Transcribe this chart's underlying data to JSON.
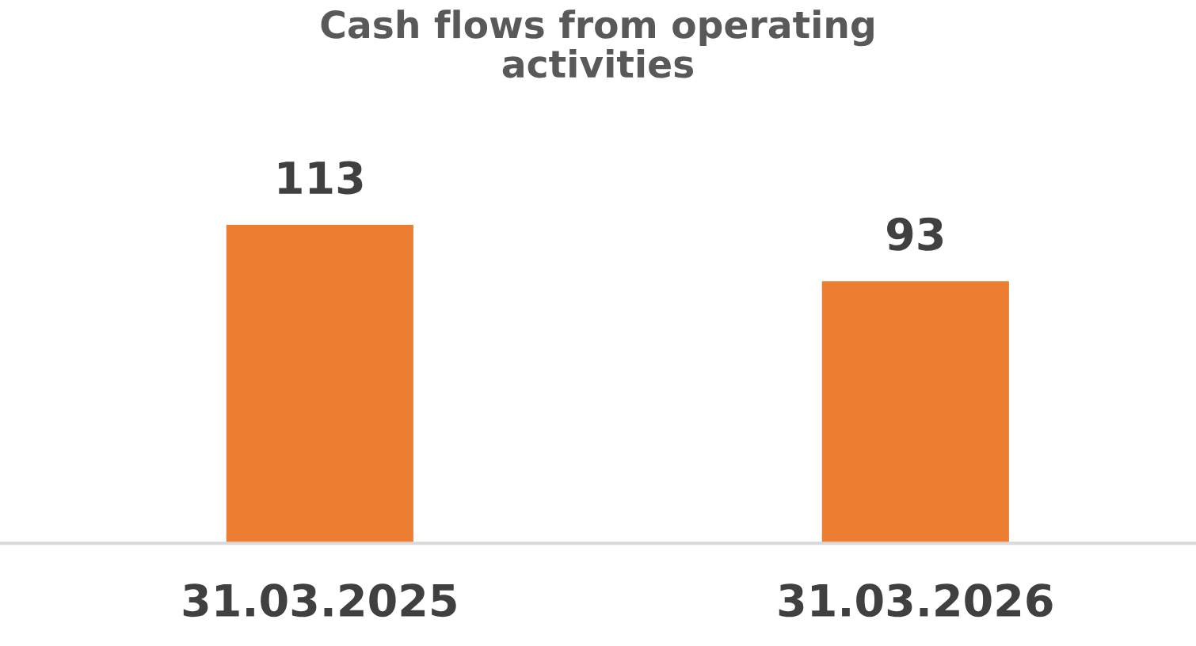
{
  "chart_data": {
    "type": "bar",
    "title": "Cash flows from operating activities",
    "categories": [
      "31.03.2025",
      "31.03.2026"
    ],
    "values": [
      113,
      93
    ],
    "color": "#ed7d31",
    "data_labels": true,
    "grid": false,
    "legend": false,
    "tick_labels": "x"
  }
}
